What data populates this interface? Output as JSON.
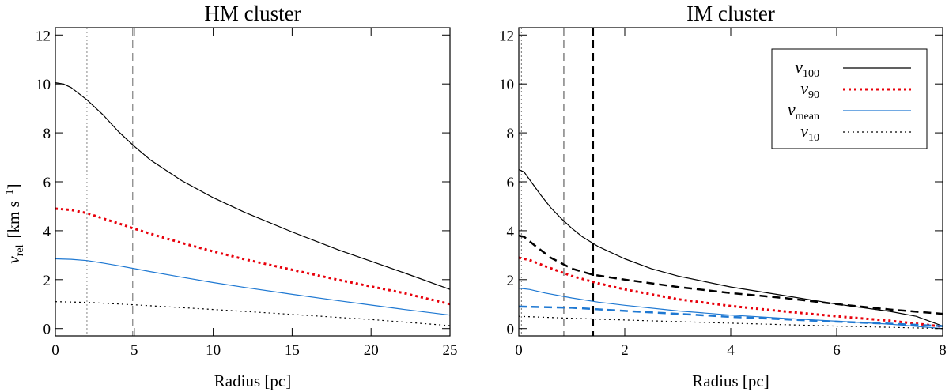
{
  "figure": {
    "ylabel_symbol": "v",
    "ylabel_sub": "rel",
    "ylabel_unit_open": "[km s",
    "ylabel_unit_exp": "−1",
    "ylabel_unit_close": "]"
  },
  "chart_data": [
    {
      "type": "line",
      "title": "HM cluster",
      "xlabel": "Radius  [pc]",
      "xlim": [
        0,
        25
      ],
      "ylim": [
        -0.3,
        12.3
      ],
      "xticks": [
        0,
        5,
        10,
        15,
        20,
        25
      ],
      "xtick_labels": [
        "0",
        "5",
        "10",
        "15",
        "20",
        "25"
      ],
      "yticks": [
        0,
        2,
        4,
        6,
        8,
        10,
        12
      ],
      "ytick_labels": [
        "0",
        "2",
        "4",
        "6",
        "8",
        "10",
        "12"
      ],
      "vlines": [
        {
          "x": 2.0,
          "style": "dotted",
          "color": "#999999",
          "width": 1.2
        },
        {
          "x": 4.9,
          "style": "dashed",
          "color": "#666666",
          "width": 1
        }
      ],
      "series": [
        {
          "name": "v_100",
          "color": "#000000",
          "style": "solid",
          "width": 1.2,
          "x": [
            0,
            0.5,
            1,
            2,
            3,
            4,
            5,
            6,
            8,
            10,
            12,
            15,
            18,
            20,
            22,
            25
          ],
          "y": [
            10.05,
            10.0,
            9.85,
            9.35,
            8.75,
            8.05,
            7.45,
            6.9,
            6.05,
            5.35,
            4.75,
            3.95,
            3.2,
            2.75,
            2.3,
            1.6
          ]
        },
        {
          "name": "v_90",
          "color": "#e8000b",
          "style": "dotted",
          "width": 3,
          "x": [
            0,
            1,
            2,
            3,
            4,
            5,
            6,
            8,
            10,
            12,
            15,
            18,
            20,
            22,
            25
          ],
          "y": [
            4.9,
            4.85,
            4.72,
            4.5,
            4.3,
            4.08,
            3.88,
            3.5,
            3.15,
            2.83,
            2.4,
            1.98,
            1.72,
            1.46,
            1.0
          ]
        },
        {
          "name": "v_mean",
          "color": "#1e78d2",
          "style": "solid",
          "width": 1.2,
          "x": [
            0,
            1,
            2,
            3,
            4,
            5,
            6,
            8,
            10,
            12,
            15,
            18,
            20,
            22,
            25
          ],
          "y": [
            2.85,
            2.83,
            2.78,
            2.68,
            2.57,
            2.45,
            2.33,
            2.1,
            1.88,
            1.68,
            1.4,
            1.13,
            0.96,
            0.79,
            0.55
          ]
        },
        {
          "name": "v_10",
          "color": "#000000",
          "style": "dotted",
          "width": 1.2,
          "x": [
            0,
            2,
            5,
            10,
            15,
            20,
            25
          ],
          "y": [
            1.1,
            1.07,
            0.97,
            0.78,
            0.58,
            0.37,
            0.12
          ]
        }
      ]
    },
    {
      "type": "line",
      "title": "IM cluster",
      "xlabel": "Radius  [pc]",
      "xlim": [
        0,
        8
      ],
      "ylim": [
        -0.3,
        12.3
      ],
      "xticks": [
        0,
        2,
        4,
        6,
        8
      ],
      "xtick_labels": [
        "0",
        "2",
        "4",
        "6",
        "8"
      ],
      "yticks": [
        0,
        2,
        4,
        6,
        8,
        10,
        12
      ],
      "ytick_labels": [
        "0",
        "2",
        "4",
        "6",
        "8",
        "10",
        "12"
      ],
      "vlines": [
        {
          "x": 0.05,
          "style": "dotted",
          "color": "#777777",
          "width": 1
        },
        {
          "x": 0.85,
          "style": "dashed",
          "color": "#444444",
          "width": 1
        },
        {
          "x": 1.4,
          "style": "dashed",
          "color": "#000000",
          "width": 2.5
        }
      ],
      "series": [
        {
          "name": "v_100",
          "color": "#000000",
          "style": "solid",
          "width": 1.2,
          "x": [
            0,
            0.1,
            0.2,
            0.4,
            0.6,
            0.8,
            1.0,
            1.2,
            1.5,
            2.0,
            2.5,
            3.0,
            4.0,
            5.0,
            6.0,
            7.0,
            7.5,
            8.0
          ],
          "y": [
            6.5,
            6.4,
            6.1,
            5.5,
            4.95,
            4.5,
            4.1,
            3.75,
            3.35,
            2.85,
            2.45,
            2.15,
            1.7,
            1.35,
            1.0,
            0.7,
            0.5,
            0.1
          ]
        },
        {
          "name": "v_90",
          "color": "#e8000b",
          "style": "dotted",
          "width": 3,
          "x": [
            0,
            0.2,
            0.5,
            1.0,
            1.5,
            2.0,
            3.0,
            4.0,
            5.0,
            6.0,
            7.0,
            8.0
          ],
          "y": [
            2.9,
            2.8,
            2.55,
            2.15,
            1.85,
            1.6,
            1.2,
            0.92,
            0.7,
            0.5,
            0.32,
            0.08
          ]
        },
        {
          "name": "v_mean",
          "color": "#1e78d2",
          "style": "solid",
          "width": 1.2,
          "x": [
            0,
            0.2,
            0.5,
            1.0,
            1.5,
            2.0,
            3.0,
            4.0,
            5.0,
            6.0,
            7.0,
            8.0
          ],
          "y": [
            1.65,
            1.6,
            1.45,
            1.25,
            1.08,
            0.95,
            0.72,
            0.55,
            0.42,
            0.3,
            0.18,
            0.0
          ]
        },
        {
          "name": "v_10",
          "color": "#000000",
          "style": "dotted",
          "width": 1.2,
          "x": [
            0,
            1,
            2,
            4,
            6,
            8
          ],
          "y": [
            0.5,
            0.42,
            0.35,
            0.22,
            0.1,
            0.0
          ]
        },
        {
          "name": "v_100 (second model)",
          "color": "#000000",
          "style": "dashed",
          "width": 2.5,
          "in_legend": false,
          "x": [
            0,
            0.1,
            0.3,
            0.6,
            1.0,
            1.4,
            2.0,
            3.0,
            4.0,
            5.0,
            6.0,
            7.0,
            8.0
          ],
          "y": [
            3.8,
            3.75,
            3.4,
            2.9,
            2.45,
            2.2,
            2.0,
            1.7,
            1.45,
            1.25,
            1.0,
            0.78,
            0.6
          ]
        },
        {
          "name": "v_mean (second model)",
          "color": "#1e78d2",
          "style": "dashed",
          "width": 2.5,
          "in_legend": false,
          "x": [
            0,
            1,
            2,
            3,
            4,
            5,
            6,
            7,
            8
          ],
          "y": [
            0.9,
            0.85,
            0.72,
            0.6,
            0.48,
            0.38,
            0.28,
            0.2,
            0.1
          ]
        }
      ],
      "legend": {
        "position": "top-right",
        "entries": [
          {
            "symbol": "v",
            "sub": "100",
            "color": "#000000",
            "style": "solid"
          },
          {
            "symbol": "v",
            "sub": "90",
            "color": "#e8000b",
            "style": "dotted"
          },
          {
            "symbol": "v",
            "sub": "mean",
            "color": "#1e78d2",
            "style": "solid"
          },
          {
            "symbol": "v",
            "sub": "10",
            "color": "#000000",
            "style": "dotted"
          }
        ]
      }
    }
  ]
}
